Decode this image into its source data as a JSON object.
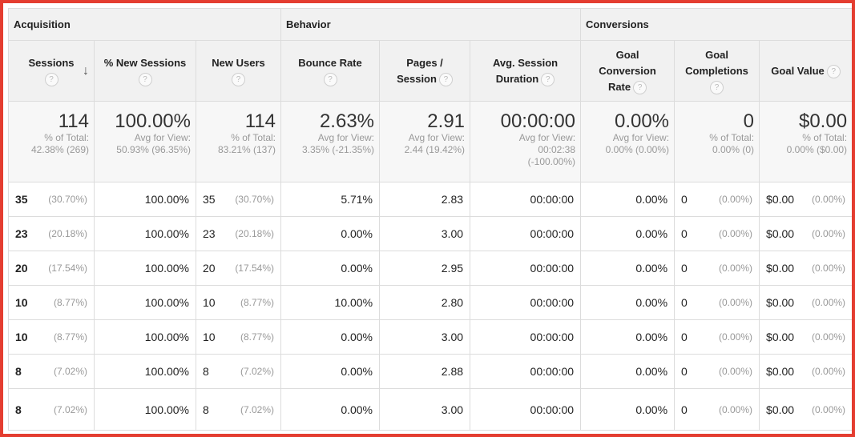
{
  "groups": {
    "acquisition": "Acquisition",
    "behavior": "Behavior",
    "conversions": "Conversions"
  },
  "columns": {
    "sessions": "Sessions",
    "new_sessions": "% New Sessions",
    "new_users": "New Users",
    "bounce_rate": "Bounce Rate",
    "pages_l1": "Pages /",
    "pages_l2": "Session",
    "duration_l1": "Avg. Session",
    "duration_l2": "Duration",
    "gcr_l1": "Goal",
    "gcr_l2": "Conversion",
    "gcr_l3": "Rate",
    "gc_l1": "Goal",
    "gc_l2": "Completions",
    "goal_value": "Goal Value",
    "help": "?"
  },
  "totals": {
    "sessions": {
      "value": "114",
      "l1": "% of Total:",
      "l2": "42.38% (269)"
    },
    "new_sessions": {
      "value": "100.00%",
      "l1": "Avg for View:",
      "l2": "50.93% (96.35%)"
    },
    "new_users": {
      "value": "114",
      "l1": "% of Total:",
      "l2": "83.21% (137)"
    },
    "bounce_rate": {
      "value": "2.63%",
      "l1": "Avg for View:",
      "l2": "3.35% (-21.35%)"
    },
    "pages": {
      "value": "2.91",
      "l1": "Avg for View:",
      "l2": "2.44 (19.42%)"
    },
    "duration": {
      "value": "00:00:00",
      "l1": "Avg for View:",
      "l2": "00:02:38",
      "l3": "(-100.00%)"
    },
    "gcr": {
      "value": "0.00%",
      "l1": "Avg for View:",
      "l2": "0.00% (0.00%)"
    },
    "gc": {
      "value": "0",
      "l1": "% of Total:",
      "l2": "0.00% (0)"
    },
    "goal_value": {
      "value": "$0.00",
      "l1": "% of Total:",
      "l2": "0.00% ($0.00)"
    }
  },
  "rows": [
    {
      "sessions": "35",
      "sessions_pct": "(30.70%)",
      "new_sessions": "100.00%",
      "new_users": "35",
      "new_users_pct": "(30.70%)",
      "bounce": "5.71%",
      "pages": "2.83",
      "duration": "00:00:00",
      "gcr": "0.00%",
      "gc": "0",
      "gc_pct": "(0.00%)",
      "gv": "$0.00",
      "gv_pct": "(0.00%)"
    },
    {
      "sessions": "23",
      "sessions_pct": "(20.18%)",
      "new_sessions": "100.00%",
      "new_users": "23",
      "new_users_pct": "(20.18%)",
      "bounce": "0.00%",
      "pages": "3.00",
      "duration": "00:00:00",
      "gcr": "0.00%",
      "gc": "0",
      "gc_pct": "(0.00%)",
      "gv": "$0.00",
      "gv_pct": "(0.00%)"
    },
    {
      "sessions": "20",
      "sessions_pct": "(17.54%)",
      "new_sessions": "100.00%",
      "new_users": "20",
      "new_users_pct": "(17.54%)",
      "bounce": "0.00%",
      "pages": "2.95",
      "duration": "00:00:00",
      "gcr": "0.00%",
      "gc": "0",
      "gc_pct": "(0.00%)",
      "gv": "$0.00",
      "gv_pct": "(0.00%)"
    },
    {
      "sessions": "10",
      "sessions_pct": "(8.77%)",
      "new_sessions": "100.00%",
      "new_users": "10",
      "new_users_pct": "(8.77%)",
      "bounce": "10.00%",
      "pages": "2.80",
      "duration": "00:00:00",
      "gcr": "0.00%",
      "gc": "0",
      "gc_pct": "(0.00%)",
      "gv": "$0.00",
      "gv_pct": "(0.00%)"
    },
    {
      "sessions": "10",
      "sessions_pct": "(8.77%)",
      "new_sessions": "100.00%",
      "new_users": "10",
      "new_users_pct": "(8.77%)",
      "bounce": "0.00%",
      "pages": "3.00",
      "duration": "00:00:00",
      "gcr": "0.00%",
      "gc": "0",
      "gc_pct": "(0.00%)",
      "gv": "$0.00",
      "gv_pct": "(0.00%)"
    },
    {
      "sessions": "8",
      "sessions_pct": "(7.02%)",
      "new_sessions": "100.00%",
      "new_users": "8",
      "new_users_pct": "(7.02%)",
      "bounce": "0.00%",
      "pages": "2.88",
      "duration": "00:00:00",
      "gcr": "0.00%",
      "gc": "0",
      "gc_pct": "(0.00%)",
      "gv": "$0.00",
      "gv_pct": "(0.00%)"
    },
    {
      "sessions": "8",
      "sessions_pct": "(7.02%)",
      "new_sessions": "100.00%",
      "new_users": "8",
      "new_users_pct": "(7.02%)",
      "bounce": "0.00%",
      "pages": "3.00",
      "duration": "00:00:00",
      "gcr": "0.00%",
      "gc": "0",
      "gc_pct": "(0.00%)",
      "gv": "$0.00",
      "gv_pct": "(0.00%)"
    }
  ],
  "icons": {
    "sort": "arrow-down-icon",
    "help": "question-circle-icon"
  },
  "colors": {
    "border_accent": "#e43d30",
    "header_bg": "#f1f1f1",
    "muted_text": "#999999"
  }
}
